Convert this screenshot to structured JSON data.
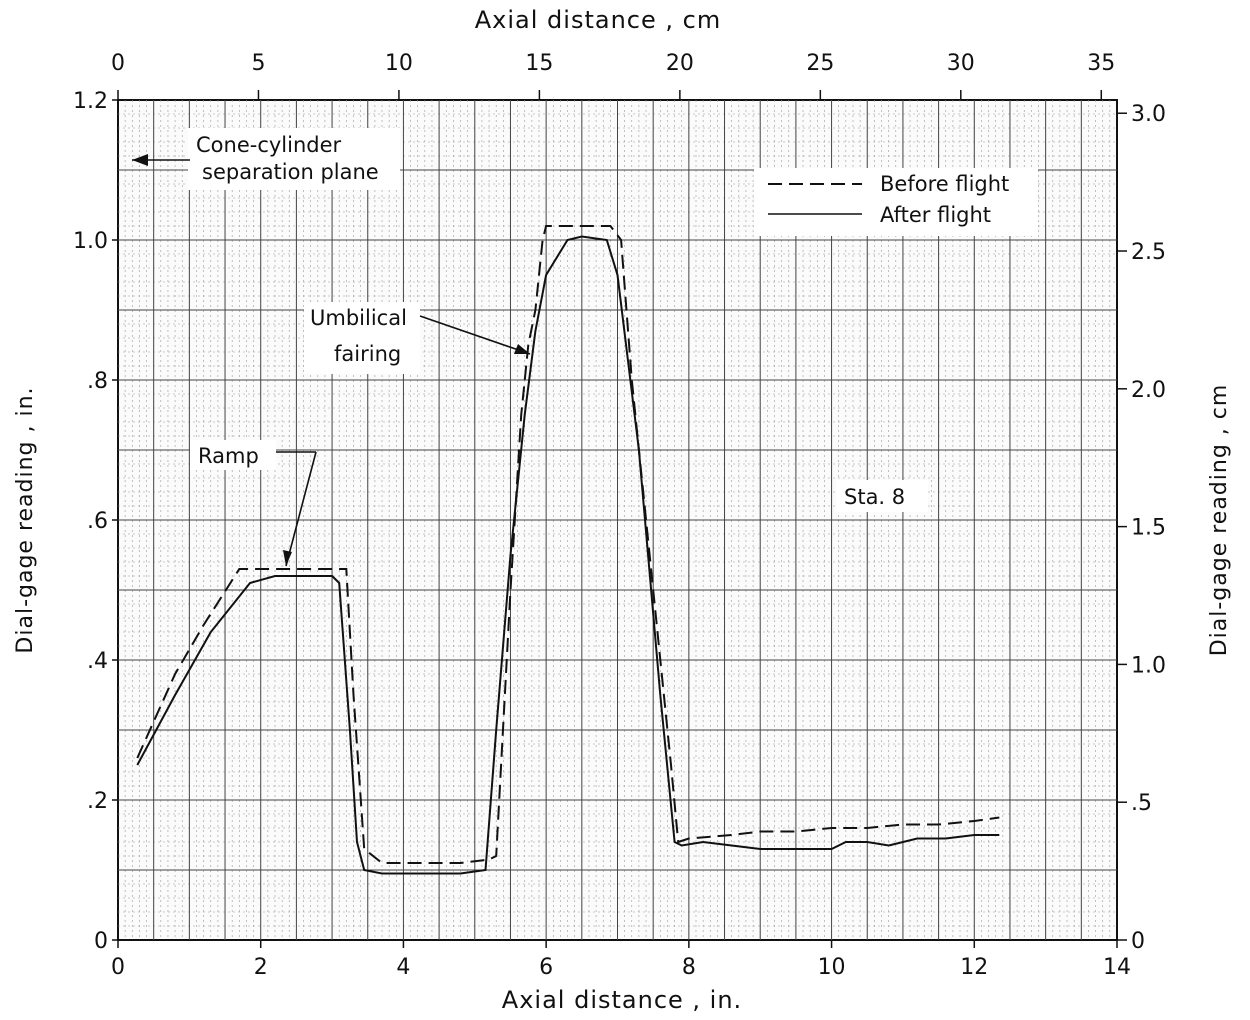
{
  "chart_data": {
    "type": "line",
    "title": "",
    "xlabel": "Axial distance , in.",
    "ylabel": "Dial-gage reading , in.",
    "x2label": "Axial distance , cm",
    "y2label": "Dial-gage reading , cm",
    "xlim": [
      0,
      14
    ],
    "ylim": [
      0,
      1.2
    ],
    "x2lim": [
      0,
      35.56
    ],
    "y2lim": [
      0,
      3.048
    ],
    "x_ticks": [
      {
        "v": 0,
        "label": "0"
      },
      {
        "v": 2,
        "label": "2"
      },
      {
        "v": 4,
        "label": "4"
      },
      {
        "v": 6,
        "label": "6"
      },
      {
        "v": 8,
        "label": "8"
      },
      {
        "v": 10,
        "label": "10"
      },
      {
        "v": 12,
        "label": "12"
      },
      {
        "v": 14,
        "label": "14"
      }
    ],
    "y_ticks": [
      {
        "v": 0,
        "label": "0"
      },
      {
        "v": 0.2,
        "label": ".2"
      },
      {
        "v": 0.4,
        "label": ".4"
      },
      {
        "v": 0.6,
        "label": ".6"
      },
      {
        "v": 0.8,
        "label": ".8"
      },
      {
        "v": 1.0,
        "label": "1.0"
      },
      {
        "v": 1.2,
        "label": "1.2"
      }
    ],
    "x2_ticks": [
      {
        "v": 0,
        "label": "0"
      },
      {
        "v": 5,
        "label": "5"
      },
      {
        "v": 10,
        "label": "10"
      },
      {
        "v": 15,
        "label": "15"
      },
      {
        "v": 20,
        "label": "20"
      },
      {
        "v": 25,
        "label": "25"
      },
      {
        "v": 30,
        "label": "30"
      },
      {
        "v": 35,
        "label": "35"
      }
    ],
    "y2_ticks": [
      {
        "v": 0,
        "label": "0"
      },
      {
        "v": 0.5,
        "label": ".5"
      },
      {
        "v": 1.0,
        "label": "1.0"
      },
      {
        "v": 1.5,
        "label": "1.5"
      },
      {
        "v": 2.0,
        "label": "2.0"
      },
      {
        "v": 2.5,
        "label": "2.5"
      },
      {
        "v": 3.0,
        "label": "3.0"
      }
    ],
    "grid": true,
    "legend_position": "top-right",
    "series": [
      {
        "name": "Before flight",
        "style": "dashed",
        "x": [
          0.27,
          0.8,
          1.2,
          1.7,
          2.2,
          2.6,
          3.1,
          3.2,
          3.3,
          3.45,
          3.7,
          4.2,
          4.8,
          5.2,
          5.3,
          5.5,
          5.65,
          5.75,
          5.85,
          5.95,
          6.0,
          6.5,
          6.9,
          7.05,
          7.2,
          7.5,
          7.75,
          7.85,
          8.0,
          8.6,
          9.0,
          9.5,
          10.0,
          10.5,
          11.0,
          11.5,
          12.0,
          12.35
        ],
        "y": [
          0.26,
          0.38,
          0.45,
          0.53,
          0.53,
          0.53,
          0.53,
          0.53,
          0.35,
          0.13,
          0.11,
          0.11,
          0.11,
          0.115,
          0.12,
          0.5,
          0.75,
          0.85,
          0.9,
          1.0,
          1.02,
          1.02,
          1.02,
          1.0,
          0.8,
          0.5,
          0.25,
          0.14,
          0.145,
          0.15,
          0.155,
          0.155,
          0.16,
          0.16,
          0.165,
          0.165,
          0.17,
          0.175
        ]
      },
      {
        "name": "After flight",
        "style": "solid",
        "x": [
          0.27,
          0.8,
          1.3,
          1.85,
          2.2,
          2.6,
          3.0,
          3.1,
          3.25,
          3.35,
          3.45,
          3.7,
          4.2,
          4.8,
          5.15,
          5.3,
          5.5,
          5.7,
          5.85,
          6.0,
          6.3,
          6.5,
          6.85,
          7.0,
          7.3,
          7.6,
          7.8,
          7.9,
          8.2,
          8.6,
          9.0,
          9.5,
          10.0,
          10.2,
          10.5,
          10.8,
          11.2,
          11.6,
          12.0,
          12.35
        ],
        "y": [
          0.25,
          0.35,
          0.44,
          0.51,
          0.52,
          0.52,
          0.52,
          0.51,
          0.3,
          0.14,
          0.1,
          0.095,
          0.095,
          0.095,
          0.1,
          0.3,
          0.55,
          0.75,
          0.87,
          0.95,
          1.0,
          1.005,
          1.0,
          0.95,
          0.7,
          0.35,
          0.14,
          0.135,
          0.14,
          0.135,
          0.13,
          0.13,
          0.13,
          0.14,
          0.14,
          0.135,
          0.145,
          0.145,
          0.15,
          0.15
        ]
      }
    ],
    "annotations": {
      "separation_line1": "Cone-cylinder",
      "separation_line2": "separation plane",
      "umbilical_line1": "Umbilical",
      "umbilical_line2": "fairing",
      "ramp": "Ramp",
      "station": "Sta. 8"
    }
  }
}
